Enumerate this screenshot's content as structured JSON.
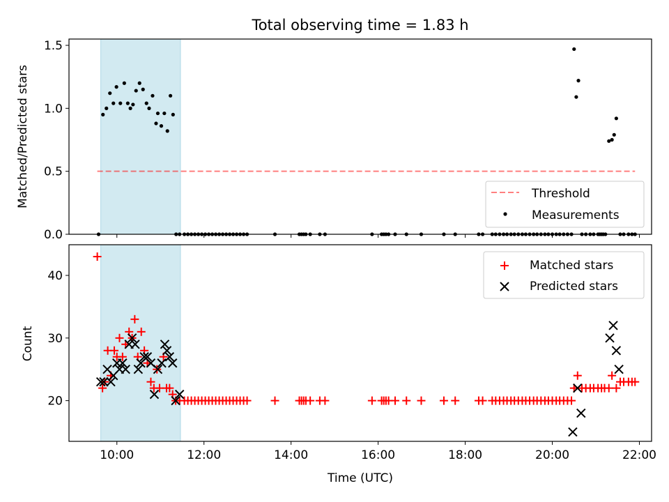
{
  "chart_data": {
    "title": "Total observing time = 1.83 h",
    "xlabel": "Time (UTC)",
    "x_ticks": [
      "10:00",
      "12:00",
      "14:00",
      "16:00",
      "18:00",
      "20:00",
      "22:00"
    ],
    "x_tick_hours": [
      10,
      12,
      14,
      16,
      18,
      20,
      22
    ],
    "xlim_hours": [
      8.9,
      22.28
    ],
    "shaded_span_hours": [
      9.63,
      11.46
    ],
    "shade_color": "#add8e6",
    "panels": [
      {
        "type": "scatter",
        "ylabel": "Matched/Predicted stars",
        "ylim": [
          0,
          1.55
        ],
        "yticks": [
          "0.0",
          "0.5",
          "1.0",
          "1.5"
        ],
        "ytick_values": [
          0,
          0.5,
          1.0,
          1.5
        ],
        "legend": {
          "placement": "bottom-right",
          "entries": [
            "Threshold",
            "Measurements"
          ]
        },
        "threshold": {
          "name": "Threshold",
          "y": 0.5,
          "x_range_hours": [
            9.55,
            21.9
          ],
          "color": "#ff0000",
          "style": "dashed"
        },
        "series": [
          {
            "name": "Measurements",
            "color": "#000000",
            "marker": "dot",
            "x": [
              9.58,
              9.68,
              9.76,
              9.84,
              9.92,
              9.99,
              10.08,
              10.17,
              10.25,
              10.31,
              10.37,
              10.44,
              10.52,
              10.6,
              10.68,
              10.74,
              10.82,
              10.9,
              10.94,
              11.02,
              11.09,
              11.16,
              11.23,
              11.29,
              11.36,
              11.44,
              11.55,
              11.63,
              11.71,
              11.79,
              11.87,
              11.95,
              12.03,
              12.11,
              12.19,
              12.27,
              12.35,
              12.43,
              12.51,
              12.59,
              12.67,
              12.75,
              12.83,
              12.91,
              12.99,
              13.63,
              14.19,
              14.24,
              14.29,
              14.34,
              14.44,
              14.66,
              14.78,
              15.86,
              16.08,
              16.13,
              16.18,
              16.24,
              16.39,
              16.65,
              16.99,
              17.51,
              17.77,
              18.31,
              18.4,
              18.62,
              18.7,
              18.79,
              18.88,
              18.96,
              19.05,
              19.13,
              19.22,
              19.31,
              19.39,
              19.48,
              19.57,
              19.65,
              19.74,
              19.83,
              19.91,
              20.0,
              20.09,
              20.17,
              20.26,
              20.35,
              20.44,
              20.5,
              20.55,
              20.6,
              20.68,
              20.77,
              20.87,
              20.95,
              21.05,
              21.09,
              21.13,
              21.17,
              21.22,
              21.3,
              21.37,
              21.42,
              21.47,
              21.56,
              21.64,
              21.75,
              21.83,
              21.9
            ],
            "y": [
              0,
              0.95,
              1.0,
              1.12,
              1.04,
              1.17,
              1.04,
              1.2,
              1.04,
              1.0,
              1.03,
              1.14,
              1.2,
              1.15,
              1.04,
              1.0,
              1.1,
              0.88,
              0.96,
              0.86,
              0.96,
              0.82,
              1.1,
              0.95,
              0,
              0,
              0,
              0,
              0,
              0,
              0,
              0,
              0,
              0,
              0,
              0,
              0,
              0,
              0,
              0,
              0,
              0,
              0,
              0,
              0,
              0,
              0,
              0,
              0,
              0,
              0,
              0,
              0,
              0,
              0,
              0,
              0,
              0,
              0,
              0,
              0,
              0,
              0,
              0,
              0,
              0,
              0,
              0,
              0,
              0,
              0,
              0,
              0,
              0,
              0,
              0,
              0,
              0,
              0,
              0,
              0,
              0,
              0,
              0,
              0,
              0,
              0,
              1.47,
              1.09,
              1.22,
              0,
              0,
              0,
              0,
              0,
              0,
              0,
              0,
              0,
              0.74,
              0.75,
              0.79,
              0.92,
              0,
              0,
              0,
              0,
              0
            ]
          }
        ]
      },
      {
        "type": "scatter",
        "ylabel": "Count",
        "ylim": [
          13.5,
          44.9
        ],
        "yticks": [
          "20",
          "30",
          "40"
        ],
        "ytick_values": [
          20,
          30,
          40
        ],
        "legend": {
          "placement": "top-right",
          "entries": [
            "Matched stars",
            "Predicted stars"
          ]
        },
        "series": [
          {
            "name": "Matched stars",
            "color": "#ff0000",
            "marker": "plus",
            "x": [
              9.55,
              9.67,
              9.72,
              9.79,
              9.86,
              9.94,
              10.0,
              10.06,
              10.13,
              10.2,
              10.28,
              10.35,
              10.41,
              10.48,
              10.56,
              10.63,
              10.7,
              10.78,
              10.85,
              10.92,
              10.98,
              11.07,
              11.14,
              11.21,
              11.28,
              11.35,
              11.44,
              11.55,
              11.63,
              11.71,
              11.79,
              11.87,
              11.95,
              12.03,
              12.11,
              12.19,
              12.27,
              12.35,
              12.43,
              12.51,
              12.59,
              12.67,
              12.75,
              12.83,
              12.91,
              12.99,
              13.63,
              14.19,
              14.24,
              14.29,
              14.34,
              14.44,
              14.66,
              14.78,
              15.86,
              16.08,
              16.13,
              16.18,
              16.24,
              16.39,
              16.65,
              16.99,
              17.51,
              17.77,
              18.31,
              18.4,
              18.62,
              18.7,
              18.79,
              18.88,
              18.96,
              19.05,
              19.13,
              19.22,
              19.31,
              19.39,
              19.48,
              19.57,
              19.65,
              19.74,
              19.83,
              19.91,
              20.0,
              20.09,
              20.17,
              20.26,
              20.35,
              20.44,
              20.5,
              20.58,
              20.68,
              20.77,
              20.87,
              20.95,
              21.05,
              21.13,
              21.2,
              21.3,
              21.37,
              21.47,
              21.56,
              21.64,
              21.75,
              21.83,
              21.9
            ],
            "y": [
              43,
              22,
              23,
              28,
              24,
              28,
              27,
              30,
              27,
              29,
              31,
              30,
              33,
              27,
              31,
              28,
              26,
              23,
              22,
              25,
              22,
              27,
              22,
              22,
              21,
              20,
              20,
              20,
              20,
              20,
              20,
              20,
              20,
              20,
              20,
              20,
              20,
              20,
              20,
              20,
              20,
              20,
              20,
              20,
              20,
              20,
              20,
              20,
              20,
              20,
              20,
              20,
              20,
              20,
              20,
              20,
              20,
              20,
              20,
              20,
              20,
              20,
              20,
              20,
              20,
              20,
              20,
              20,
              20,
              20,
              20,
              20,
              20,
              20,
              20,
              20,
              20,
              20,
              20,
              20,
              20,
              20,
              20,
              20,
              20,
              20,
              20,
              20,
              22,
              24,
              22,
              22,
              22,
              22,
              22,
              22,
              22,
              22,
              24,
              22,
              23,
              23,
              23,
              23,
              23
            ]
          },
          {
            "name": "Predicted stars",
            "color": "#000000",
            "marker": "x",
            "x": [
              9.63,
              9.7,
              9.78,
              9.86,
              9.92,
              10.0,
              10.06,
              10.13,
              10.2,
              10.28,
              10.35,
              10.42,
              10.49,
              10.55,
              10.63,
              10.7,
              10.78,
              10.86,
              10.94,
              11.03,
              11.1,
              11.15,
              11.21,
              11.28,
              11.35,
              11.44,
              20.47,
              20.58,
              20.66,
              21.32,
              21.4,
              21.47,
              21.53
            ],
            "y": [
              23,
              23,
              25,
              23,
              24,
              26,
              25,
              26,
              25,
              29,
              30,
              29,
              25,
              26,
              27,
              27,
              26,
              21,
              25,
              26,
              29,
              28,
              27,
              26,
              20,
              21,
              15,
              22,
              18,
              30,
              32,
              28,
              25
            ]
          }
        ]
      }
    ]
  }
}
